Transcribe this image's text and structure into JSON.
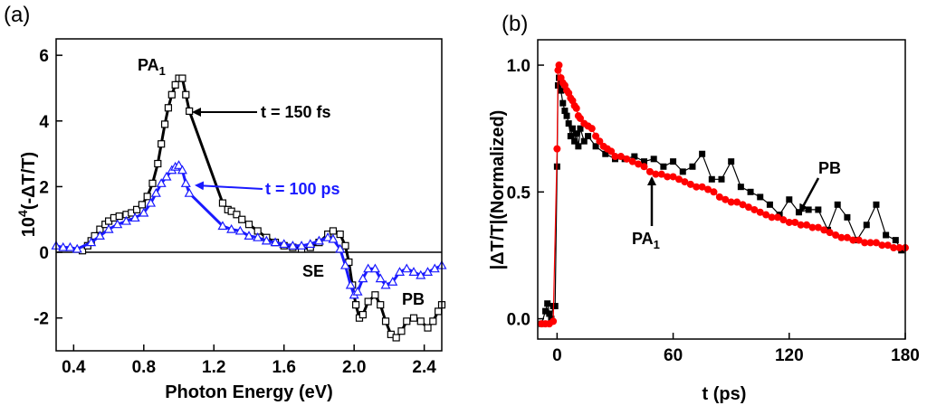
{
  "chart_data": [
    {
      "panel": "(a)",
      "type": "scatter",
      "title": "",
      "xlabel": "Photon Energy (eV)",
      "ylabel_prefix": "10",
      "ylabel_exp": "4",
      "ylabel_suffix": "(-ΔT/T)",
      "xlim": [
        0.3,
        2.5
      ],
      "ylim": [
        -3.0,
        6.5
      ],
      "xticks": [
        0.4,
        0.8,
        1.2,
        1.6,
        2.0,
        2.4
      ],
      "xtick_labels": [
        "0.4",
        "0.8",
        "1.2",
        "1.6",
        "2.0",
        "2.4"
      ],
      "yticks": [
        -2,
        0,
        2,
        4,
        6
      ],
      "ytick_labels": [
        "-2",
        "0",
        "2",
        "4",
        "6"
      ],
      "zero_line": true,
      "series": [
        {
          "name": "t = 150 fs",
          "color": "#000000",
          "marker": "open-square",
          "points": [
            [
              0.45,
              0.05
            ],
            [
              0.48,
              0.2
            ],
            [
              0.5,
              0.35
            ],
            [
              0.52,
              0.5
            ],
            [
              0.55,
              0.7
            ],
            [
              0.58,
              0.85
            ],
            [
              0.6,
              0.95
            ],
            [
              0.63,
              1.05
            ],
            [
              0.66,
              1.1
            ],
            [
              0.7,
              1.15
            ],
            [
              0.73,
              1.2
            ],
            [
              0.76,
              1.3
            ],
            [
              0.79,
              1.45
            ],
            [
              0.82,
              1.7
            ],
            [
              0.85,
              2.1
            ],
            [
              0.88,
              2.7
            ],
            [
              0.9,
              3.3
            ],
            [
              0.92,
              3.9
            ],
            [
              0.94,
              4.4
            ],
            [
              0.96,
              4.8
            ],
            [
              0.98,
              5.1
            ],
            [
              1.0,
              5.3
            ],
            [
              1.02,
              5.3
            ],
            [
              1.04,
              4.8
            ],
            [
              1.06,
              4.3
            ],
            [
              1.25,
              1.5
            ],
            [
              1.28,
              1.3
            ],
            [
              1.3,
              1.25
            ],
            [
              1.33,
              1.15
            ],
            [
              1.36,
              1.0
            ],
            [
              1.4,
              0.85
            ],
            [
              1.45,
              0.65
            ],
            [
              1.5,
              0.45
            ],
            [
              1.55,
              0.3
            ],
            [
              1.6,
              0.2
            ],
            [
              1.65,
              0.15
            ],
            [
              1.7,
              0.1
            ],
            [
              1.75,
              0.15
            ],
            [
              1.8,
              0.3
            ],
            [
              1.85,
              0.55
            ],
            [
              1.88,
              0.65
            ],
            [
              1.92,
              0.55
            ],
            [
              1.95,
              0.2
            ],
            [
              1.97,
              -0.3
            ],
            [
              1.99,
              -1.0
            ],
            [
              2.01,
              -1.6
            ],
            [
              2.03,
              -2.0
            ],
            [
              2.05,
              -1.9
            ],
            [
              2.08,
              -1.5
            ],
            [
              2.12,
              -1.3
            ],
            [
              2.15,
              -1.6
            ],
            [
              2.18,
              -2.1
            ],
            [
              2.21,
              -2.5
            ],
            [
              2.24,
              -2.6
            ],
            [
              2.27,
              -2.4
            ],
            [
              2.3,
              -2.1
            ],
            [
              2.34,
              -2.0
            ],
            [
              2.38,
              -2.1
            ],
            [
              2.42,
              -2.3
            ],
            [
              2.45,
              -2.1
            ],
            [
              2.48,
              -1.8
            ],
            [
              2.5,
              -1.6
            ]
          ]
        },
        {
          "name": "t = 100 ps",
          "color": "#1a1aff",
          "marker": "open-triangle",
          "points": [
            [
              0.3,
              0.2
            ],
            [
              0.34,
              0.15
            ],
            [
              0.38,
              0.15
            ],
            [
              0.42,
              0.1
            ],
            [
              0.5,
              0.3
            ],
            [
              0.55,
              0.5
            ],
            [
              0.6,
              0.7
            ],
            [
              0.65,
              0.85
            ],
            [
              0.7,
              0.95
            ],
            [
              0.75,
              1.05
            ],
            [
              0.8,
              1.2
            ],
            [
              0.84,
              1.5
            ],
            [
              0.87,
              1.8
            ],
            [
              0.9,
              2.1
            ],
            [
              0.93,
              2.3
            ],
            [
              0.96,
              2.5
            ],
            [
              0.98,
              2.6
            ],
            [
              1.0,
              2.65
            ],
            [
              1.02,
              2.5
            ],
            [
              1.04,
              2.1
            ],
            [
              1.06,
              1.8
            ],
            [
              1.25,
              0.8
            ],
            [
              1.3,
              0.7
            ],
            [
              1.35,
              0.65
            ],
            [
              1.4,
              0.5
            ],
            [
              1.45,
              0.45
            ],
            [
              1.5,
              0.35
            ],
            [
              1.55,
              0.3
            ],
            [
              1.6,
              0.25
            ],
            [
              1.65,
              0.2
            ],
            [
              1.7,
              0.2
            ],
            [
              1.75,
              0.25
            ],
            [
              1.8,
              0.35
            ],
            [
              1.85,
              0.45
            ],
            [
              1.88,
              0.4
            ],
            [
              1.92,
              0.1
            ],
            [
              1.95,
              -0.4
            ],
            [
              1.98,
              -1.0
            ],
            [
              2.0,
              -1.3
            ],
            [
              2.02,
              -1.2
            ],
            [
              2.05,
              -0.8
            ],
            [
              2.08,
              -0.5
            ],
            [
              2.12,
              -0.5
            ],
            [
              2.15,
              -0.8
            ],
            [
              2.18,
              -1.0
            ],
            [
              2.22,
              -0.9
            ],
            [
              2.26,
              -0.6
            ],
            [
              2.3,
              -0.5
            ],
            [
              2.34,
              -0.6
            ],
            [
              2.38,
              -0.7
            ],
            [
              2.42,
              -0.6
            ],
            [
              2.46,
              -0.5
            ],
            [
              2.5,
              -0.4
            ]
          ]
        }
      ],
      "annotations": [
        {
          "text": "PA",
          "sub": "1",
          "color": "#000000"
        },
        {
          "text": "t = 150 fs",
          "color": "#000000"
        },
        {
          "text": "t = 100 ps",
          "color": "#1a1aff"
        },
        {
          "text": "SE",
          "color": "#000000"
        },
        {
          "text": "PB",
          "color": "#000000"
        }
      ]
    },
    {
      "panel": "(b)",
      "type": "line",
      "title": "",
      "xlabel": "t (ps)",
      "ylabel": "|ΔT/T|(Normalized)",
      "xlim": [
        -10,
        180
      ],
      "ylim": [
        -0.08,
        1.1
      ],
      "xticks": [
        0,
        60,
        120,
        180
      ],
      "xtick_labels": [
        "0",
        "60",
        "120",
        "180"
      ],
      "yticks": [
        0.0,
        0.5,
        1.0
      ],
      "ytick_labels": [
        "0.0",
        "0.5",
        "1.0"
      ],
      "series": [
        {
          "name": "PB",
          "color": "#000000",
          "marker": "filled-square",
          "points": [
            [
              -8,
              -0.02
            ],
            [
              -6,
              0.03
            ],
            [
              -5,
              0.06
            ],
            [
              -4,
              0.02
            ],
            [
              -3,
              0.0
            ],
            [
              -2,
              0.05
            ],
            [
              -1,
              0.05
            ],
            [
              0,
              0.6
            ],
            [
              0.5,
              0.92
            ],
            [
              1,
              0.95
            ],
            [
              2,
              0.9
            ],
            [
              3,
              0.85
            ],
            [
              4,
              0.82
            ],
            [
              5,
              0.8
            ],
            [
              6,
              0.77
            ],
            [
              7,
              0.72
            ],
            [
              8,
              0.75
            ],
            [
              9,
              0.7
            ],
            [
              10,
              0.73
            ],
            [
              11,
              0.68
            ],
            [
              12,
              0.75
            ],
            [
              14,
              0.7
            ],
            [
              16,
              0.72
            ],
            [
              20,
              0.68
            ],
            [
              25,
              0.65
            ],
            [
              30,
              0.63
            ],
            [
              35,
              0.63
            ],
            [
              40,
              0.64
            ],
            [
              45,
              0.62
            ],
            [
              50,
              0.63
            ],
            [
              55,
              0.6
            ],
            [
              60,
              0.62
            ],
            [
              65,
              0.58
            ],
            [
              70,
              0.6
            ],
            [
              75,
              0.65
            ],
            [
              80,
              0.55
            ],
            [
              85,
              0.55
            ],
            [
              90,
              0.62
            ],
            [
              95,
              0.52
            ],
            [
              100,
              0.5
            ],
            [
              105,
              0.48
            ],
            [
              110,
              0.45
            ],
            [
              115,
              0.41
            ],
            [
              120,
              0.47
            ],
            [
              125,
              0.42
            ],
            [
              130,
              0.43
            ],
            [
              135,
              0.43
            ],
            [
              140,
              0.35
            ],
            [
              145,
              0.45
            ],
            [
              150,
              0.4
            ],
            [
              155,
              0.31
            ],
            [
              160,
              0.37
            ],
            [
              165,
              0.45
            ],
            [
              170,
              0.33
            ],
            [
              175,
              0.31
            ],
            [
              178,
              0.27
            ]
          ]
        },
        {
          "name": "PA1",
          "color": "#ff0000",
          "marker": "filled-circle",
          "points": [
            [
              -8,
              -0.02
            ],
            [
              -6,
              -0.02
            ],
            [
              -4,
              -0.02
            ],
            [
              -2,
              -0.01
            ],
            [
              0,
              0.67
            ],
            [
              0.5,
              0.98
            ],
            [
              1,
              1.0
            ],
            [
              2,
              0.95
            ],
            [
              3,
              0.93
            ],
            [
              4,
              0.92
            ],
            [
              5,
              0.9
            ],
            [
              6,
              0.89
            ],
            [
              7,
              0.87
            ],
            [
              8,
              0.86
            ],
            [
              9,
              0.84
            ],
            [
              10,
              0.83
            ],
            [
              11,
              0.8
            ],
            [
              12,
              0.79
            ],
            [
              14,
              0.77
            ],
            [
              16,
              0.76
            ],
            [
              18,
              0.75
            ],
            [
              20,
              0.72
            ],
            [
              22,
              0.7
            ],
            [
              24,
              0.68
            ],
            [
              26,
              0.67
            ],
            [
              28,
              0.66
            ],
            [
              30,
              0.64
            ],
            [
              33,
              0.64
            ],
            [
              36,
              0.63
            ],
            [
              39,
              0.62
            ],
            [
              42,
              0.61
            ],
            [
              45,
              0.6
            ],
            [
              48,
              0.58
            ],
            [
              51,
              0.57
            ],
            [
              54,
              0.57
            ],
            [
              57,
              0.56
            ],
            [
              60,
              0.56
            ],
            [
              63,
              0.55
            ],
            [
              66,
              0.54
            ],
            [
              69,
              0.53
            ],
            [
              72,
              0.52
            ],
            [
              75,
              0.52
            ],
            [
              78,
              0.51
            ],
            [
              81,
              0.5
            ],
            [
              84,
              0.48
            ],
            [
              87,
              0.47
            ],
            [
              90,
              0.46
            ],
            [
              93,
              0.46
            ],
            [
              96,
              0.45
            ],
            [
              99,
              0.44
            ],
            [
              102,
              0.43
            ],
            [
              105,
              0.42
            ],
            [
              108,
              0.41
            ],
            [
              111,
              0.4
            ],
            [
              114,
              0.4
            ],
            [
              117,
              0.39
            ],
            [
              120,
              0.38
            ],
            [
              123,
              0.38
            ],
            [
              126,
              0.37
            ],
            [
              129,
              0.37
            ],
            [
              132,
              0.36
            ],
            [
              135,
              0.36
            ],
            [
              138,
              0.35
            ],
            [
              141,
              0.34
            ],
            [
              144,
              0.33
            ],
            [
              147,
              0.32
            ],
            [
              150,
              0.32
            ],
            [
              153,
              0.31
            ],
            [
              156,
              0.31
            ],
            [
              159,
              0.3
            ],
            [
              162,
              0.3
            ],
            [
              165,
              0.3
            ],
            [
              168,
              0.29
            ],
            [
              171,
              0.29
            ],
            [
              174,
              0.28
            ],
            [
              177,
              0.28
            ],
            [
              180,
              0.28
            ]
          ]
        }
      ],
      "annotations": [
        {
          "text": "PB",
          "color": "#000000"
        },
        {
          "text": "PA",
          "sub": "1",
          "color": "#000000"
        }
      ]
    }
  ]
}
